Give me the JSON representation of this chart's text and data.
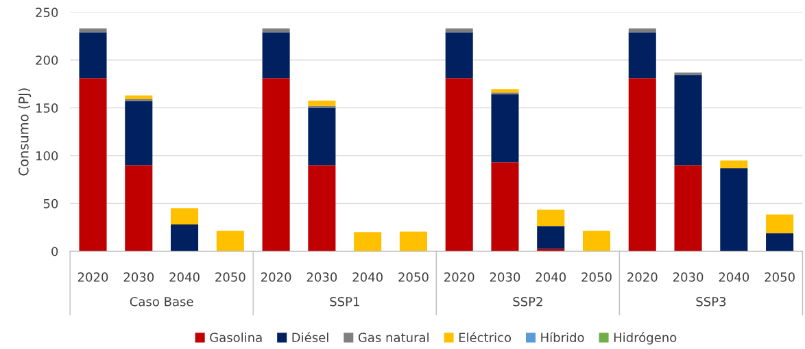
{
  "chart_data": {
    "type": "bar",
    "stacked": true,
    "ylabel": "Consumo (PJ)",
    "categories": [
      "2020",
      "2030",
      "2040",
      "2050",
      "2020",
      "2030",
      "2040",
      "2050",
      "2020",
      "2030",
      "2040",
      "2050",
      "2020",
      "2030",
      "2040",
      "2050"
    ],
    "annotations": [
      "Caso Base",
      "SSP1",
      "SSP2",
      "SSP3"
    ],
    "series": [
      {
        "name": "Gasolina",
        "color": "#c00000",
        "values": [
          181,
          90,
          0,
          0,
          181,
          90,
          0,
          0,
          181,
          93,
          2.5,
          0,
          181,
          90,
          0,
          0
        ]
      },
      {
        "name": "Diésel",
        "color": "#002060",
        "values": [
          48,
          67,
          28,
          0,
          48,
          60,
          0,
          0,
          48,
          71,
          24,
          0,
          48,
          94.5,
          87,
          19
        ]
      },
      {
        "name": "Gas natural",
        "color": "#7f7f7f",
        "values": [
          4,
          2,
          0,
          0,
          4,
          2,
          0,
          0,
          4,
          2,
          0,
          0,
          4,
          2.5,
          0,
          0
        ]
      },
      {
        "name": "Eléctrico",
        "color": "#ffc000",
        "values": [
          0,
          4,
          17,
          21.5,
          0,
          5.5,
          20,
          20.5,
          0,
          3.5,
          17,
          21.5,
          0,
          0,
          8,
          19.5
        ]
      },
      {
        "name": "Híbrido",
        "color": "#5b9bd5",
        "values": [
          0,
          0,
          0,
          0,
          0,
          0,
          0,
          0,
          0,
          0,
          0,
          0,
          0,
          0,
          0,
          0
        ]
      },
      {
        "name": "Hidrógeno",
        "color": "#70ad47",
        "values": [
          0,
          0,
          0,
          0,
          0,
          0,
          0,
          0,
          0,
          0,
          0,
          0,
          0,
          0,
          0,
          0
        ]
      }
    ],
    "ylim": [
      0,
      250
    ],
    "yticks": [
      0,
      50,
      100,
      150,
      200,
      250
    ],
    "grid": "y",
    "legend": "bottom"
  }
}
